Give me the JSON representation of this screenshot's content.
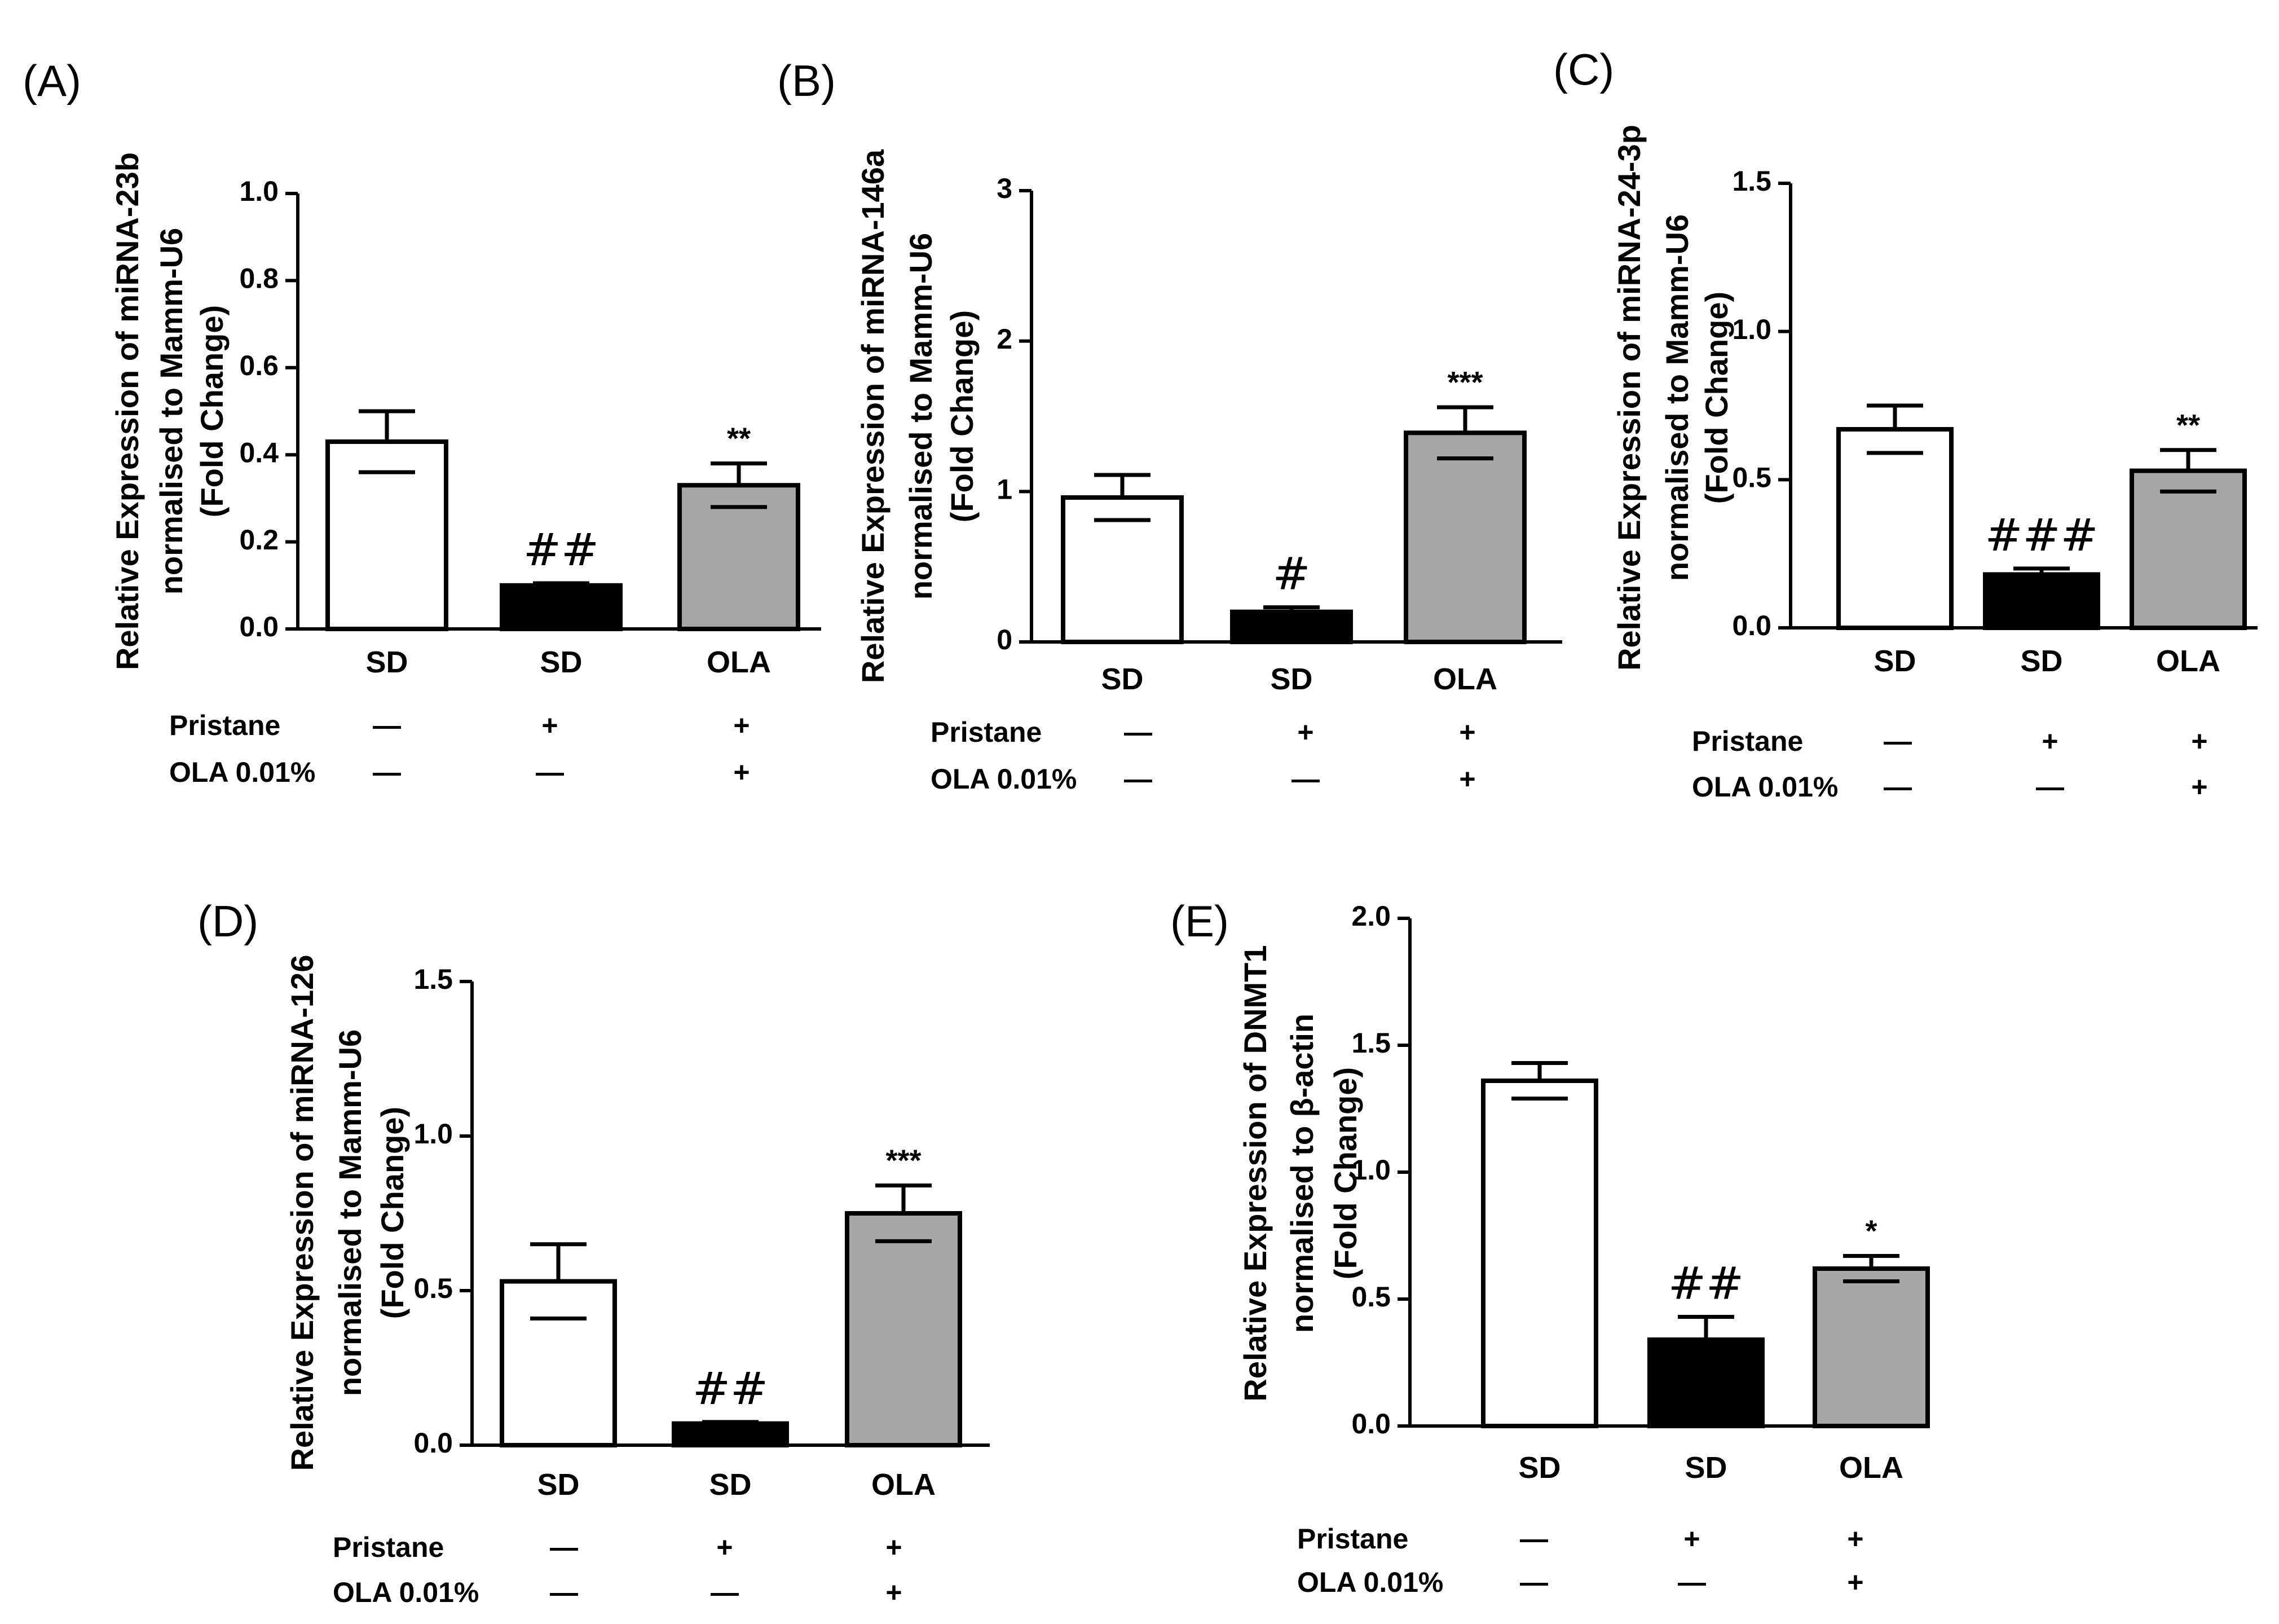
{
  "chart_data": [
    {
      "type": "bar",
      "panel": "(A)",
      "ylabel": [
        "Relative Expression of miRNA-23b",
        "normalised to Mamm-U6",
        "(Fold Change)"
      ],
      "ylim": [
        0,
        1.0
      ],
      "yticks": [
        "0.0",
        "0.2",
        "0.4",
        "0.6",
        "0.8",
        "1.0"
      ],
      "categories": [
        "SD",
        "SD",
        "OLA"
      ],
      "values": [
        0.43,
        0.1,
        0.33
      ],
      "errors": [
        0.07,
        0.005,
        0.05
      ],
      "fills": [
        "#ffffff",
        "#000000",
        "#a6a6a6"
      ],
      "annotations": [
        "",
        "##",
        "**"
      ],
      "treatments": [
        {
          "label": "Pristane",
          "signs": [
            "—",
            "+",
            "+"
          ]
        },
        {
          "label": "OLA  0.01%",
          "signs": [
            "—",
            "—",
            "+"
          ]
        }
      ]
    },
    {
      "type": "bar",
      "panel": "(B)",
      "ylabel": [
        "Relative Expression of miRNA-146a",
        "normalised to Mamm-U6",
        "(Fold Change)"
      ],
      "ylim": [
        0,
        3
      ],
      "yticks": [
        "0",
        "1",
        "2",
        "3"
      ],
      "categories": [
        "SD",
        "SD",
        "OLA"
      ],
      "values": [
        0.96,
        0.2,
        1.39
      ],
      "errors": [
        0.15,
        0.03,
        0.17
      ],
      "fills": [
        "#ffffff",
        "#000000",
        "#a6a6a6"
      ],
      "annotations": [
        "",
        "#",
        "***"
      ],
      "treatments": [
        {
          "label": "Pristane",
          "signs": [
            "—",
            "+",
            "+"
          ]
        },
        {
          "label": "OLA  0.01%",
          "signs": [
            "—",
            "—",
            "+"
          ]
        }
      ]
    },
    {
      "type": "bar",
      "panel": "(C)",
      "ylabel": [
        "Relative Expression of miRNA-24-3p",
        "normalised to Mamm-U6",
        "(Fold Change)"
      ],
      "ylim": [
        0,
        1.5
      ],
      "yticks": [
        "0.0",
        "0.5",
        "1.0",
        "1.5"
      ],
      "categories": [
        "SD",
        "SD",
        "OLA"
      ],
      "values": [
        0.67,
        0.18,
        0.53
      ],
      "errors": [
        0.08,
        0.02,
        0.07
      ],
      "fills": [
        "#ffffff",
        "#000000",
        "#a6a6a6"
      ],
      "annotations": [
        "",
        "###",
        "**"
      ],
      "treatments": [
        {
          "label": "Pristane",
          "signs": [
            "—",
            "+",
            "+"
          ]
        },
        {
          "label": "OLA  0.01%",
          "signs": [
            "—",
            "—",
            "+"
          ]
        }
      ]
    },
    {
      "type": "bar",
      "panel": "(D)",
      "ylabel": [
        "Relative Expression of miRNA-126",
        "normalised to Mamm-U6",
        "(Fold Change)"
      ],
      "ylim": [
        0,
        1.5
      ],
      "yticks": [
        "0.0",
        "0.5",
        "1.0",
        "1.5"
      ],
      "categories": [
        "SD",
        "SD",
        "OLA"
      ],
      "values": [
        0.53,
        0.07,
        0.75
      ],
      "errors": [
        0.12,
        0.005,
        0.09
      ],
      "fills": [
        "#ffffff",
        "#000000",
        "#a6a6a6"
      ],
      "annotations": [
        "",
        "##",
        "***"
      ],
      "treatments": [
        {
          "label": "Pristane",
          "signs": [
            "—",
            "+",
            "+"
          ]
        },
        {
          "label": "OLA  0.01%",
          "signs": [
            "—",
            "—",
            "+"
          ]
        }
      ]
    },
    {
      "type": "bar",
      "panel": "(E)",
      "ylabel": [
        "Relative Expression of DNMT1",
        "normalised to β-actin",
        "(Fold Change)"
      ],
      "ylim": [
        0,
        2.0
      ],
      "yticks": [
        "0.0",
        "0.5",
        "1.0",
        "1.5",
        "2.0"
      ],
      "categories": [
        "SD",
        "SD",
        "OLA"
      ],
      "values": [
        1.36,
        0.34,
        0.62
      ],
      "errors": [
        0.07,
        0.09,
        0.05
      ],
      "fills": [
        "#ffffff",
        "#000000",
        "#a6a6a6"
      ],
      "annotations": [
        "",
        "##",
        "*"
      ],
      "treatments": [
        {
          "label": "Pristane",
          "signs": [
            "—",
            "+",
            "+"
          ]
        },
        {
          "label": "OLA  0.01%",
          "signs": [
            "—",
            "—",
            "+"
          ]
        }
      ]
    }
  ]
}
